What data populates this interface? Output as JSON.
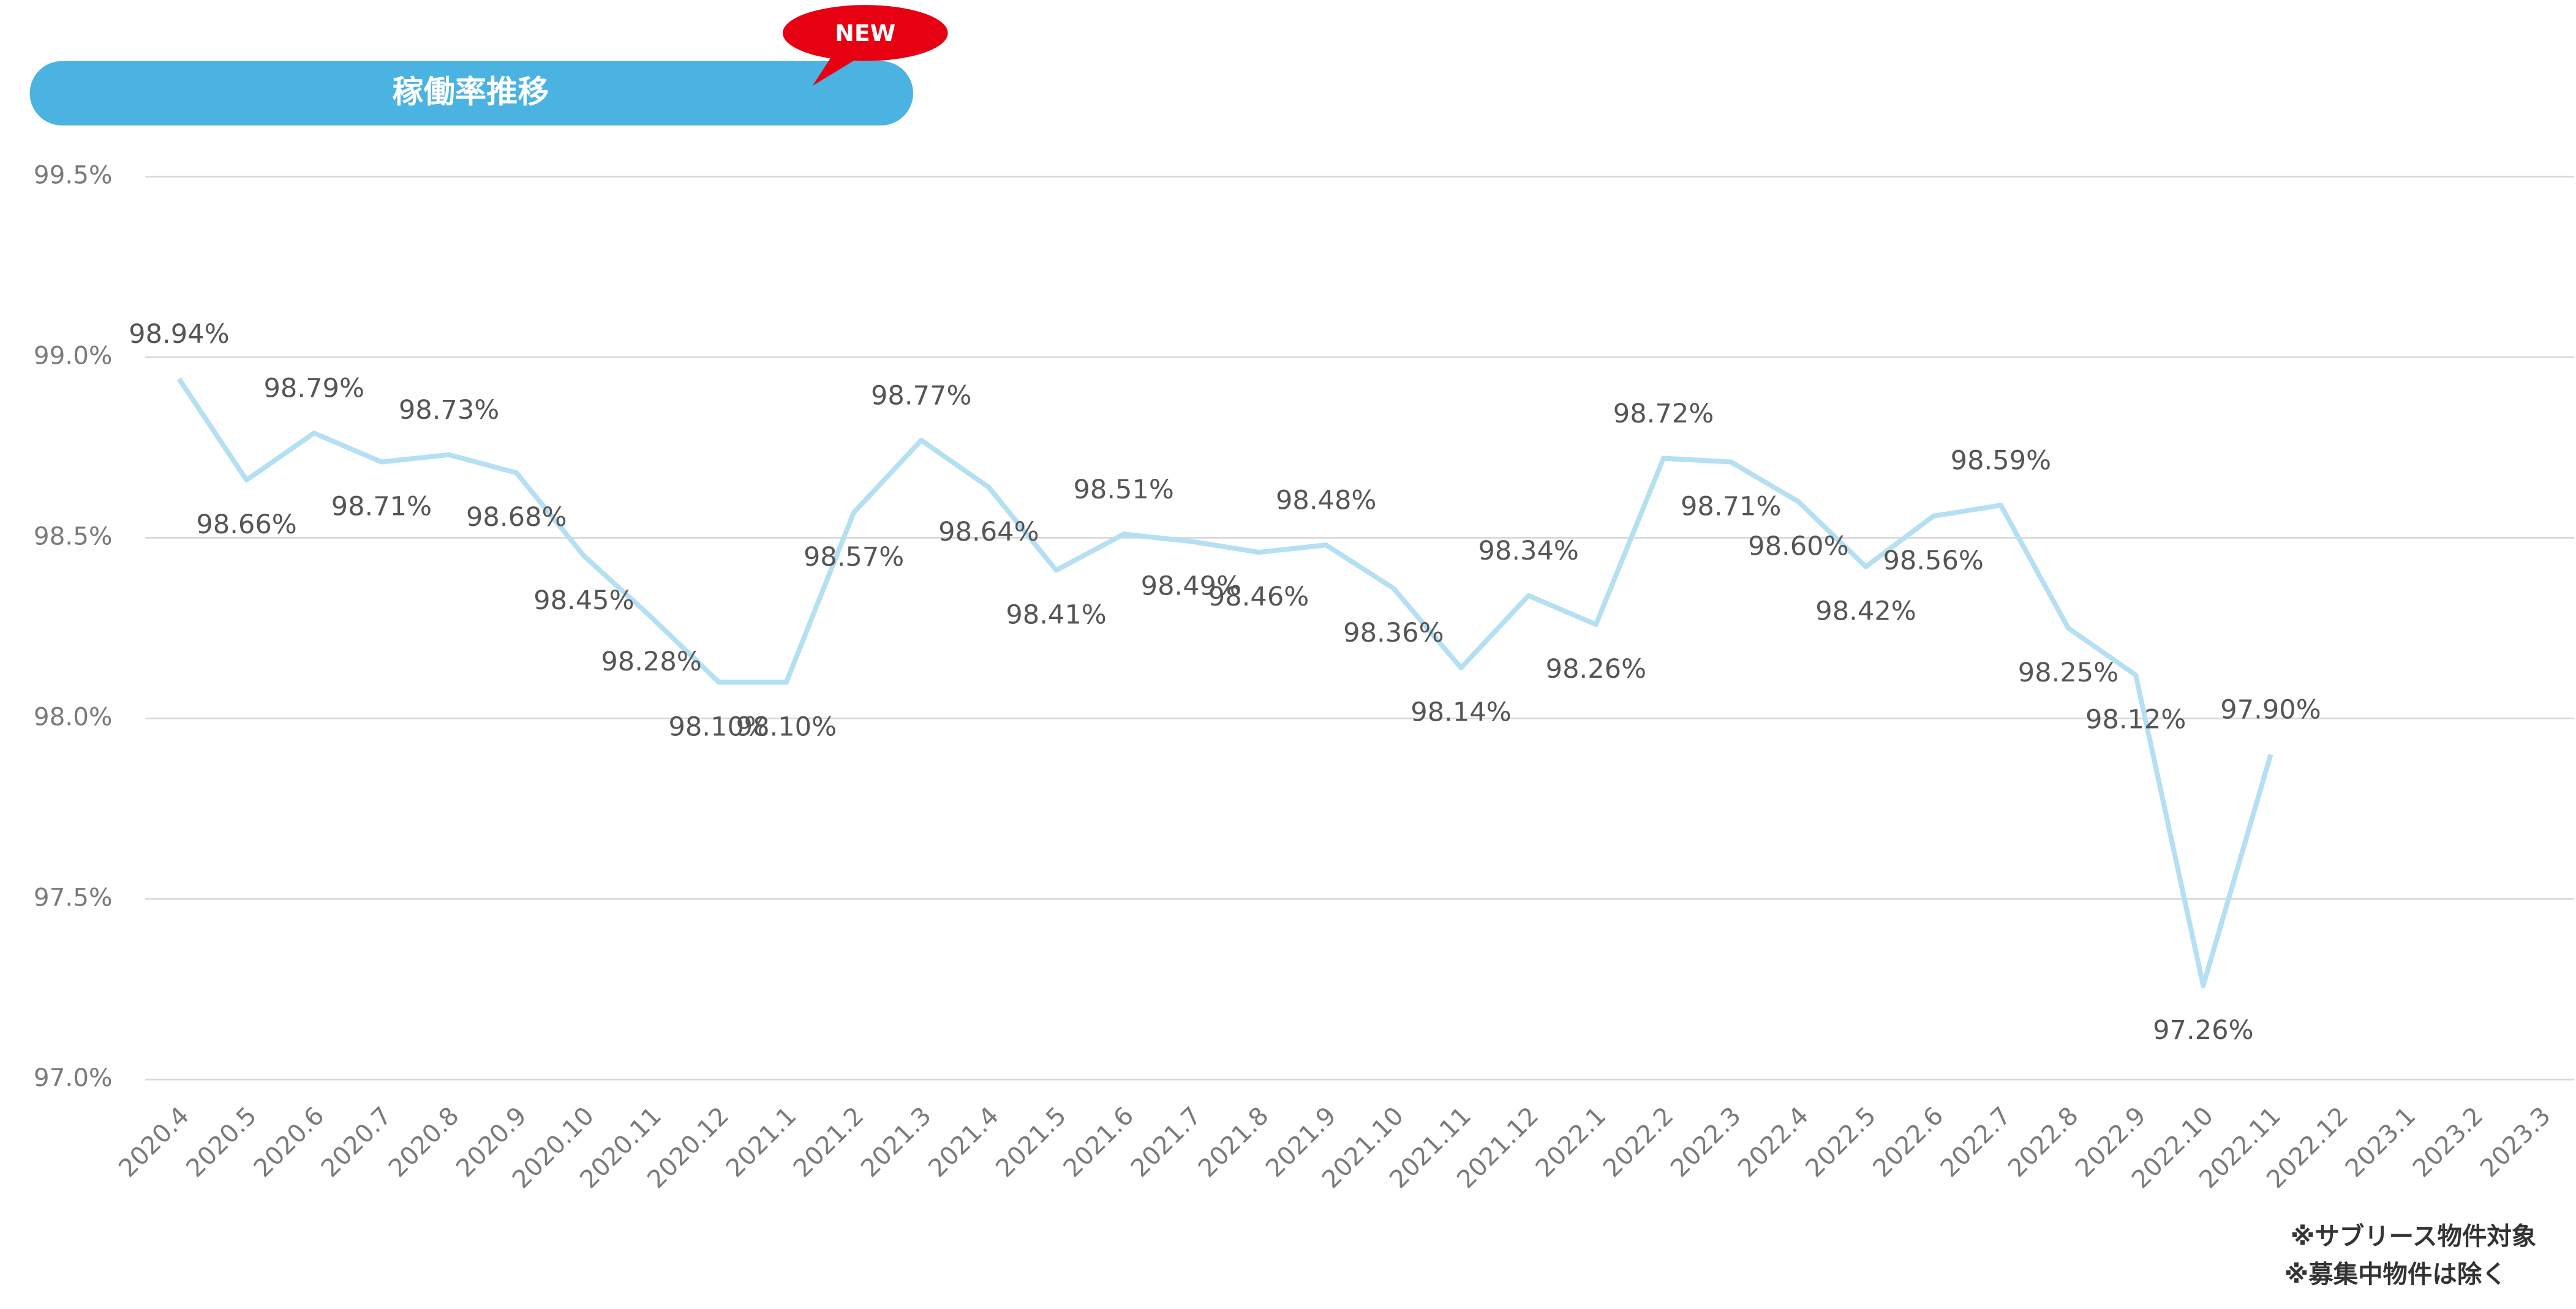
{
  "chart_data": {
    "type": "line",
    "title": "稼働率推移",
    "badge": "NEW",
    "notes": [
      "※サブリース物件対象",
      "※募集中物件は除く"
    ],
    "categories": [
      "2020.4",
      "2020.5",
      "2020.6",
      "2020.7",
      "2020.8",
      "2020.9",
      "2020.10",
      "2020.11",
      "2020.12",
      "2021.1",
      "2021.2",
      "2021.3",
      "2021.4",
      "2021.5",
      "2021.6",
      "2021.7",
      "2021.8",
      "2021.9",
      "2021.10",
      "2021.11",
      "2021.12",
      "2022.1",
      "2022.2",
      "2022.3",
      "2022.4",
      "2022.5",
      "2022.6",
      "2022.7",
      "2022.8",
      "2022.9",
      "2022.10",
      "2022.11",
      "2022.12",
      "2023.1",
      "2023.2",
      "2023.3"
    ],
    "values": [
      98.94,
      98.66,
      98.79,
      98.71,
      98.73,
      98.68,
      98.45,
      98.28,
      98.1,
      98.1,
      98.57,
      98.77,
      98.64,
      98.41,
      98.51,
      98.49,
      98.46,
      98.48,
      98.36,
      98.14,
      98.34,
      98.26,
      98.72,
      98.71,
      98.6,
      98.42,
      98.56,
      98.59,
      98.25,
      98.12,
      97.26,
      97.9,
      null,
      null,
      null,
      null
    ],
    "value_labels": [
      "98.94%",
      "98.66%",
      "98.79%",
      "98.71%",
      "98.73%",
      "98.68%",
      "98.45%",
      "98.28%",
      "98.10%",
      "98.10%",
      "98.57%",
      "98.77%",
      "98.64%",
      "98.41%",
      "98.51%",
      "98.49%",
      "98.46%",
      "98.48%",
      "98.36%",
      "98.14%",
      "98.34%",
      "98.26%",
      "98.72%",
      "98.71%",
      "98.60%",
      "98.42%",
      "98.56%",
      "98.59%",
      "98.25%",
      "98.12%",
      "97.26%",
      "97.90%",
      null,
      null,
      null,
      null
    ],
    "color": "#b5dff2",
    "ylim": [
      97.0,
      99.5
    ],
    "yticks": [
      {
        "value": 97.0,
        "label": "97.0%"
      },
      {
        "value": 97.5,
        "label": "97.5%"
      },
      {
        "value": 98.0,
        "label": "98.0%"
      },
      {
        "value": 98.5,
        "label": "98.5%"
      },
      {
        "value": 99.0,
        "label": "99.0%"
      },
      {
        "value": 99.5,
        "label": "99.5%"
      }
    ],
    "grid": true
  }
}
